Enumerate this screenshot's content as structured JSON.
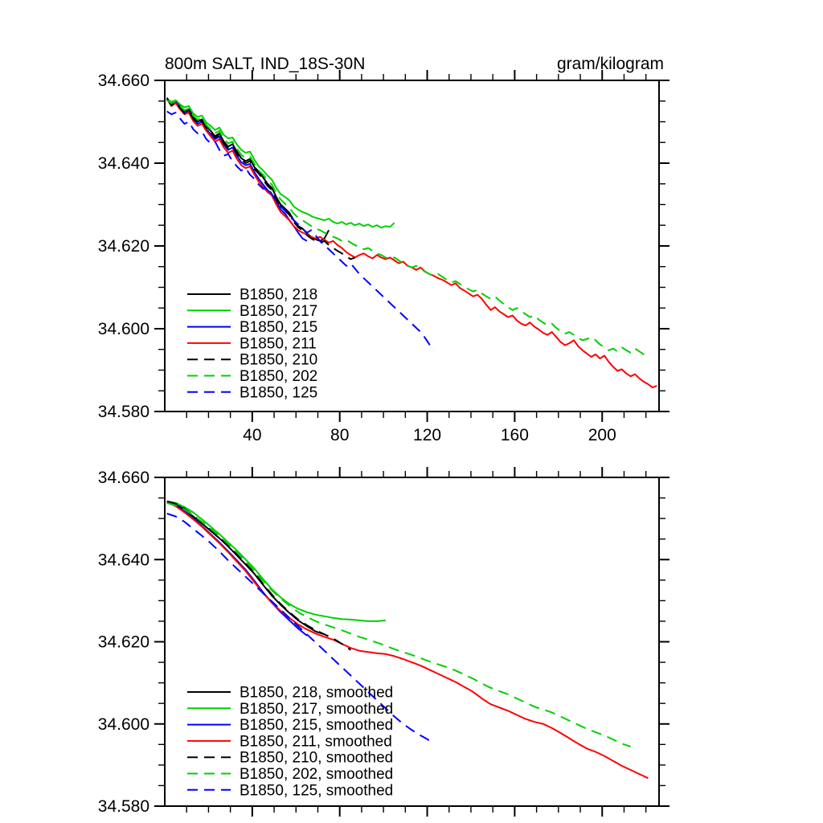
{
  "figure": {
    "title": "800m SALT, IND_18S-30N",
    "units": "gram/kilogram",
    "background": "#ffffff",
    "frame_color": "#000000"
  },
  "chart_data": {
    "type": "line",
    "title": "800m SALT, IND_18S-30N",
    "units_label": "gram/kilogram",
    "xlabel": "",
    "ylabel": "",
    "xlim": [
      0,
      226
    ],
    "ylim": [
      34.58,
      34.66
    ],
    "grid": false,
    "legend_position": "inside-lower-left",
    "xticks": {
      "major": [
        40,
        80,
        120,
        160,
        200
      ],
      "labels": [
        "40",
        "80",
        "120",
        "160",
        "200"
      ],
      "minor_step": 10
    },
    "yticks": {
      "major": [
        34.66,
        34.64,
        34.62,
        34.6,
        34.58
      ],
      "labels": [
        "34.660",
        "34.640",
        "34.620",
        "34.600",
        "34.580"
      ],
      "minor_step": 0.005
    },
    "panels": [
      {
        "name": "raw",
        "show_x_labels": true,
        "series": [
          {
            "label": "B1850, 218",
            "color": "#000000",
            "style": "solid",
            "x_start": 1,
            "x_step": 2,
            "values": [
              34.6558,
              34.6542,
              34.655,
              34.6538,
              34.6525,
              34.653,
              34.6512,
              34.65,
              34.6506,
              34.6488,
              34.6478,
              34.6465,
              34.6472,
              34.6452,
              34.644,
              34.6446,
              34.6428,
              34.6412,
              34.6405,
              34.641,
              34.639,
              34.638,
              34.6365,
              34.635,
              34.634,
              34.6318,
              34.63,
              34.629,
              34.628,
              34.6262,
              34.6248,
              34.6242,
              34.623,
              34.6222,
              34.6216,
              34.6212,
              34.6218,
              34.6238
            ]
          },
          {
            "label": "B1850, 217",
            "color": "#00d000",
            "style": "solid",
            "x_start": 1,
            "x_step": 2,
            "values": [
              34.6555,
              34.6548,
              34.6552,
              34.6542,
              34.6535,
              34.6538,
              34.652,
              34.6512,
              34.6515,
              34.6498,
              34.649,
              34.648,
              34.6486,
              34.6468,
              34.646,
              34.6462,
              34.6445,
              34.6432,
              34.6425,
              34.6428,
              34.6408,
              34.6392,
              34.6382,
              34.637,
              34.636,
              34.634,
              34.6325,
              34.6318,
              34.631,
              34.6295,
              34.6288,
              34.6282,
              34.6278,
              34.6272,
              34.6268,
              34.6265,
              34.6262,
              34.6266,
              34.6258,
              34.6254,
              34.6258,
              34.6252,
              34.6256,
              34.625,
              34.6254,
              34.6248,
              34.6252,
              34.6246,
              34.625,
              34.6244,
              34.6248,
              34.6246,
              34.6256
            ]
          },
          {
            "label": "B1850, 215",
            "color": "#0000ff",
            "style": "solid",
            "x_start": 1,
            "x_step": 2,
            "values": [
              34.6552,
              34.6545,
              34.6548,
              34.6535,
              34.6522,
              34.6525,
              34.6508,
              34.6495,
              34.65,
              34.6482,
              34.647,
              34.6458,
              34.6464,
              34.6445,
              34.6432,
              34.6438,
              34.6418,
              34.6402,
              34.6395,
              34.6398,
              34.6378,
              34.6362,
              34.6348,
              34.6335,
              34.6325,
              34.6305,
              34.6288,
              34.6278,
              34.6262,
              34.6248,
              34.6232,
              34.6218,
              34.6212
            ]
          },
          {
            "label": "B1850, 211",
            "color": "#ff0000",
            "style": "solid",
            "x_start": 1,
            "x_step": 2,
            "values": [
              34.6555,
              34.6538,
              34.6545,
              34.653,
              34.6518,
              34.6522,
              34.6502,
              34.649,
              34.6495,
              34.6478,
              34.6465,
              34.6452,
              34.6458,
              34.6438,
              34.6425,
              34.643,
              34.641,
              34.6395,
              34.6388,
              34.6392,
              34.6372,
              34.6355,
              34.6342,
              34.633,
              34.6322,
              34.63,
              34.6282,
              34.6272,
              34.6262,
              34.6248,
              34.6238,
              34.6232,
              34.6228,
              34.6222,
              34.6218,
              34.6222,
              34.6215,
              34.6208,
              34.6212,
              34.6202,
              34.6195,
              34.6185,
              34.6178,
              34.6172,
              34.6178,
              34.6182,
              34.6175,
              34.617,
              34.6178,
              34.6172,
              34.6168,
              34.6172,
              34.6165,
              34.6158,
              34.6162,
              34.6152,
              34.6148,
              34.6142,
              34.6148,
              34.6138,
              34.6132,
              34.6128,
              34.6122,
              34.6118,
              34.6112,
              34.6105,
              34.611,
              34.6098,
              34.6092,
              34.6085,
              34.6078,
              34.6082,
              34.6072,
              34.6058,
              34.6045,
              34.6052,
              34.6042,
              34.6035,
              34.6028,
              34.6032,
              34.602,
              34.6012,
              34.6008,
              34.6015,
              34.6005,
              34.5998,
              34.599,
              34.5985,
              34.5992,
              34.598,
              34.5968,
              34.596,
              34.5965,
              34.5972,
              34.5958,
              34.5948,
              34.594,
              34.5932,
              34.5938,
              34.5928,
              34.5935,
              34.592,
              34.5908,
              34.5898,
              34.5902,
              34.5892,
              34.5885,
              34.589,
              34.588,
              34.5872,
              34.5866,
              34.5858,
              34.5862
            ]
          },
          {
            "label": "B1850, 210",
            "color": "#000000",
            "style": "dashed",
            "x_start": 1,
            "x_step": 2,
            "values": [
              34.6556,
              34.654,
              34.6546,
              34.6534,
              34.652,
              34.6526,
              34.6508,
              34.6496,
              34.6502,
              34.6485,
              34.6474,
              34.6462,
              34.6468,
              34.6448,
              34.6436,
              34.6442,
              34.6422,
              34.6408,
              34.64,
              34.6405,
              34.6385,
              34.6375,
              34.636,
              34.6345,
              34.6335,
              34.6312,
              34.6295,
              34.6285,
              34.6275,
              34.6258,
              34.6245,
              34.6238,
              34.6226,
              34.6218,
              34.6212,
              34.6208,
              34.6212,
              34.6202,
              34.6195,
              34.6188,
              34.6182,
              34.6175,
              34.6168,
              34.6172
            ]
          },
          {
            "label": "B1850, 202",
            "color": "#00d000",
            "style": "dashed",
            "x_start": 1,
            "x_step": 2,
            "values": [
              34.6552,
              34.6545,
              34.655,
              34.6538,
              34.6528,
              34.6532,
              34.6515,
              34.6505,
              34.651,
              34.6492,
              34.6482,
              34.6472,
              34.6478,
              34.6458,
              34.6448,
              34.6452,
              34.6435,
              34.642,
              34.6412,
              34.6416,
              34.6398,
              34.6382,
              34.6372,
              34.6358,
              34.6348,
              34.6328,
              34.6312,
              34.6302,
              34.6292,
              34.6278,
              34.6268,
              34.6262,
              34.6255,
              34.6248,
              34.6242,
              34.6238,
              34.6232,
              34.6228,
              34.6222,
              34.6218,
              34.6212,
              34.6215,
              34.6208,
              34.6202,
              34.6198,
              34.6192,
              34.6195,
              34.6188,
              34.6182,
              34.6178,
              34.6172,
              34.6168,
              34.6172,
              34.6165,
              34.6158,
              34.6152,
              34.6148,
              34.6152,
              34.6145,
              34.6138,
              34.6132,
              34.6128,
              34.6132,
              34.6125,
              34.6118,
              34.6112,
              34.6115,
              34.6108,
              34.6102,
              34.6095,
              34.609,
              34.6094,
              34.6085,
              34.6078,
              34.6072,
              34.6078,
              34.6068,
              34.606,
              34.6052,
              34.6045,
              34.605,
              34.6042,
              34.6035,
              34.6028,
              34.6032,
              34.6022,
              34.6015,
              34.6008,
              34.6012,
              34.6002,
              34.5995,
              34.5988,
              34.5992,
              34.5985,
              34.5978,
              34.5972,
              34.5975,
              34.598,
              34.5972,
              34.5962,
              34.5955,
              34.5948,
              34.5952,
              34.5945,
              34.5955,
              34.5948,
              34.5942,
              34.5952,
              34.5945,
              34.5938,
              34.5932
            ]
          },
          {
            "label": "B1850, 125",
            "color": "#0000ff",
            "style": "dashed",
            "x_start": 1,
            "x_step": 2,
            "values": [
              34.6525,
              34.6518,
              34.6522,
              34.6508,
              34.6495,
              34.65,
              34.6482,
              34.6472,
              34.6476,
              34.6458,
              34.6448,
              34.6452,
              34.6432,
              34.6418,
              34.6422,
              34.6405,
              34.6392,
              34.6382,
              34.6388,
              34.6372,
              34.6362,
              34.6348,
              34.6338,
              34.6342,
              34.6325,
              34.6308,
              34.6295,
              34.6285,
              34.6272,
              34.6262,
              34.6252,
              34.6242,
              34.6232,
              34.6238,
              34.6225,
              34.6212,
              34.6202,
              34.6192,
              34.6182,
              34.6172,
              34.6162,
              34.6152,
              34.6158,
              34.6145,
              34.6132,
              34.6122,
              34.6112,
              34.6102,
              34.6092,
              34.6082,
              34.6072,
              34.6062,
              34.6052,
              34.6042,
              34.6032,
              34.6022,
              34.6012,
              34.6002,
              34.5992,
              34.5978,
              34.5962,
              34.5948
            ]
          }
        ]
      },
      {
        "name": "smoothed",
        "show_x_labels": false,
        "series": [
          {
            "label": "B1850, 218, smoothed",
            "color": "#000000",
            "style": "solid",
            "x_start": 1,
            "x_step": 4,
            "values": [
              34.654,
              34.6535,
              34.6522,
              34.6505,
              34.6488,
              34.647,
              34.6452,
              34.6432,
              34.641,
              34.6388,
              34.6365,
              34.6338,
              34.6312,
              34.629,
              34.627,
              34.6252,
              34.6238,
              34.6225,
              34.6218
            ]
          },
          {
            "label": "B1850, 217, smoothed",
            "color": "#00d000",
            "style": "solid",
            "x_start": 1,
            "x_step": 4,
            "values": [
              34.6542,
              34.6538,
              34.6528,
              34.6515,
              34.6498,
              34.648,
              34.6462,
              34.6442,
              34.6422,
              34.64,
              34.6378,
              34.6352,
              34.6328,
              34.6308,
              34.6292,
              34.628,
              34.6272,
              34.6266,
              34.6262,
              34.6258,
              34.6255,
              34.6254,
              34.6252,
              34.625,
              34.625,
              34.6252
            ]
          },
          {
            "label": "B1850, 215, smoothed",
            "color": "#0000ff",
            "style": "solid",
            "x_start": 1,
            "x_step": 4,
            "values": [
              34.6538,
              34.6532,
              34.6518,
              34.65,
              34.6482,
              34.6462,
              34.6442,
              34.642,
              34.6398,
              34.6375,
              34.6348,
              34.632,
              34.6295,
              34.6272,
              34.6252,
              34.6232,
              34.6215
            ]
          },
          {
            "label": "B1850, 211, smoothed",
            "color": "#ff0000",
            "style": "solid",
            "x_start": 1,
            "x_step": 4,
            "values": [
              34.654,
              34.653,
              34.6515,
              34.6498,
              34.648,
              34.646,
              34.644,
              34.6418,
              34.6395,
              34.6372,
              34.6345,
              34.6318,
              34.6295,
              34.6275,
              34.6258,
              34.6242,
              34.623,
              34.622,
              34.6212,
              34.6205,
              34.6195,
              34.6185,
              34.6178,
              34.6175,
              34.6172,
              34.617,
              34.6165,
              34.6158,
              34.615,
              34.6142,
              34.6132,
              34.6122,
              34.6112,
              34.6102,
              34.609,
              34.6078,
              34.6062,
              34.6048,
              34.604,
              34.6032,
              34.6022,
              34.6012,
              34.6005,
              34.6,
              34.599,
              34.5978,
              34.5965,
              34.5952,
              34.594,
              34.5932,
              34.5922,
              34.591,
              34.5898,
              34.5888,
              34.5878,
              34.5868
            ]
          },
          {
            "label": "B1850, 210, smoothed",
            "color": "#000000",
            "style": "dashed",
            "x_start": 1,
            "x_step": 4,
            "values": [
              34.6542,
              34.6536,
              34.6524,
              34.6508,
              34.649,
              34.6472,
              34.6454,
              34.6434,
              34.6412,
              34.639,
              34.6368,
              34.634,
              34.6315,
              34.6292,
              34.6272,
              34.6254,
              34.624,
              34.6228,
              34.6218,
              34.6208,
              34.6195,
              34.618
            ]
          },
          {
            "label": "B1850, 202, smoothed",
            "color": "#00d000",
            "style": "dashed",
            "x_start": 1,
            "x_step": 4,
            "values": [
              34.6538,
              34.6532,
              34.6522,
              34.6508,
              34.6492,
              34.6475,
              34.6458,
              34.6438,
              34.6418,
              34.6396,
              34.6372,
              34.6348,
              34.6325,
              34.6305,
              34.6288,
              34.6272,
              34.626,
              34.625,
              34.6242,
              34.6235,
              34.6228,
              34.622,
              34.6212,
              34.6205,
              34.6198,
              34.619,
              34.6182,
              34.6175,
              34.6168,
              34.616,
              34.6152,
              34.6145,
              34.6138,
              34.613,
              34.612,
              34.611,
              34.6098,
              34.6088,
              34.608,
              34.6072,
              34.6062,
              34.6052,
              34.6042,
              34.6035,
              34.6028,
              34.6018,
              34.6008,
              34.5998,
              34.5988,
              34.598,
              34.5972,
              34.5962,
              34.5952,
              34.5945
            ]
          },
          {
            "label": "B1850, 125, smoothed",
            "color": "#0000ff",
            "style": "dashed",
            "x_start": 1,
            "x_step": 4,
            "values": [
              34.6512,
              34.6505,
              34.6492,
              34.6475,
              34.6458,
              34.644,
              34.642,
              34.6398,
              34.6378,
              34.6358,
              34.6338,
              34.6318,
              34.6298,
              34.6278,
              34.6258,
              34.6238,
              34.6218,
              34.6198,
              34.6178,
              34.6158,
              34.6138,
              34.6118,
              34.6098,
              34.6078,
              34.6058,
              34.6038,
              34.6018,
              34.6,
              34.5985,
              34.5972,
              34.596
            ]
          }
        ]
      }
    ]
  }
}
